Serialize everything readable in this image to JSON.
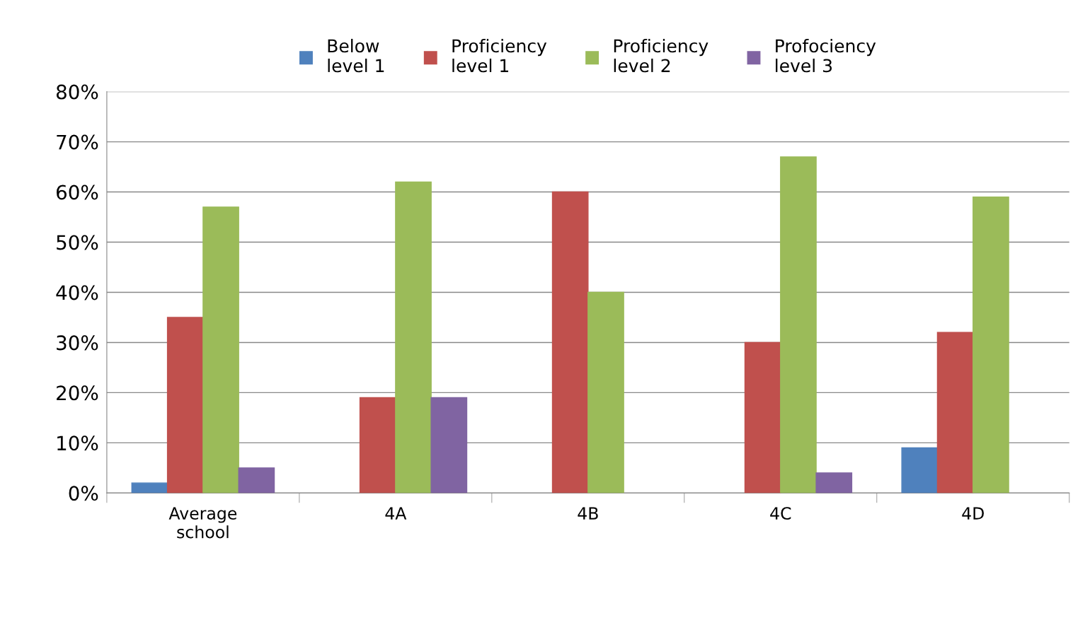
{
  "chart_data": {
    "type": "bar",
    "categories": [
      "Average\nschool",
      "4A",
      "4B",
      "4C",
      "4D"
    ],
    "series": [
      {
        "name": "Below\nlevel 1",
        "color": "#4f81bd",
        "values": [
          2,
          null,
          null,
          null,
          9
        ]
      },
      {
        "name": "Proficiency\nlevel 1",
        "color": "#c0504d",
        "values": [
          35,
          19,
          60,
          30,
          32
        ]
      },
      {
        "name": "Proficiency\nlevel 2",
        "color": "#9bbb59",
        "values": [
          57,
          62,
          40,
          67,
          59
        ]
      },
      {
        "name": "Profociency\nlevel 3",
        "color": "#8064a2",
        "values": [
          5,
          19,
          null,
          4,
          null
        ]
      }
    ],
    "ylim": [
      0,
      80
    ],
    "yticks": [
      {
        "value": 0,
        "label": "0%"
      },
      {
        "value": 10,
        "label": "10%"
      },
      {
        "value": 20,
        "label": "20%"
      },
      {
        "value": 30,
        "label": "30%"
      },
      {
        "value": 40,
        "label": "40%"
      },
      {
        "value": 50,
        "label": "50%"
      },
      {
        "value": 60,
        "label": "60%"
      },
      {
        "value": 70,
        "label": "70%"
      },
      {
        "value": 80,
        "label": "80%"
      }
    ],
    "grid": "y",
    "legend": "top"
  }
}
